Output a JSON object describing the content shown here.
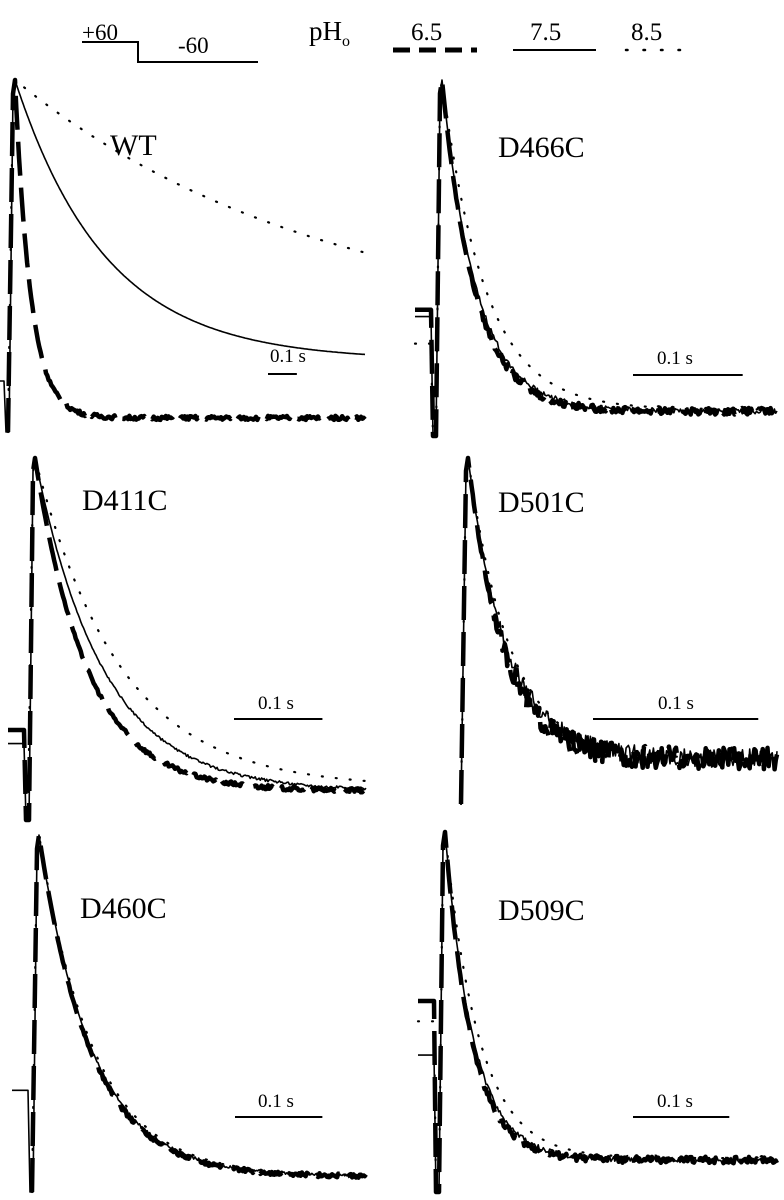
{
  "protocol": {
    "step_high_label": "+60",
    "step_low_label": "-60"
  },
  "legend": {
    "title_main": "pH",
    "title_sub": "o",
    "entries": [
      {
        "label": "6.5",
        "style": "dashed-thick"
      },
      {
        "label": "7.5",
        "style": "solid"
      },
      {
        "label": "8.5",
        "style": "dotted"
      }
    ]
  },
  "chart_data": [
    {
      "type": "line",
      "title": "WT",
      "scale_bar": "0.1 s",
      "scale_bar_seconds": 0.1,
      "x_range_seconds": [
        0,
        1.23
      ],
      "y_range_normalized": [
        0,
        1
      ],
      "pre_pulse_level": {
        "solid": 0.12
      },
      "series": [
        {
          "name": "6.5",
          "style": "dashed-thick",
          "tau_seconds": 0.055,
          "baseline": 0.012,
          "noise": 0.006
        },
        {
          "name": "7.5",
          "style": "solid",
          "tau_seconds": 0.32,
          "baseline": 0.18,
          "noise": 0
        },
        {
          "name": "8.5",
          "style": "dotted",
          "tau_seconds": 1.1,
          "baseline": 0.25,
          "noise": 0
        }
      ]
    },
    {
      "type": "line",
      "title": "D466C",
      "scale_bar": "0.1 s",
      "scale_bar_seconds": 0.1,
      "x_range_seconds": [
        0,
        0.31
      ],
      "y_range_normalized": [
        0,
        1
      ],
      "pre_pulse_level": {
        "dashed-thick": 0.32,
        "solid": 0.3,
        "dotted": 0.22
      },
      "series": [
        {
          "name": "6.5",
          "style": "dashed-thick",
          "tau_seconds": 0.03,
          "baseline": 0.02,
          "noise": 0.01
        },
        {
          "name": "7.5",
          "style": "solid",
          "tau_seconds": 0.032,
          "baseline": 0.02,
          "noise": 0.008
        },
        {
          "name": "8.5",
          "style": "dotted",
          "tau_seconds": 0.04,
          "baseline": 0.025,
          "noise": 0
        }
      ]
    },
    {
      "type": "line",
      "title": "D411C",
      "scale_bar": "0.1 s",
      "scale_bar_seconds": 0.1,
      "x_range_seconds": [
        0,
        0.38
      ],
      "y_range_normalized": [
        0,
        1
      ],
      "pre_pulse_level": {
        "dashed-thick": 0.2,
        "solid": 0.16
      },
      "series": [
        {
          "name": "6.5",
          "style": "dashed-thick",
          "tau_seconds": 0.06,
          "baseline": 0.02,
          "noise": 0.006
        },
        {
          "name": "7.5",
          "style": "solid",
          "tau_seconds": 0.078,
          "baseline": 0.02,
          "noise": 0.004
        },
        {
          "name": "8.5",
          "style": "dotted",
          "tau_seconds": 0.098,
          "baseline": 0.03,
          "noise": 0
        }
      ]
    },
    {
      "type": "line",
      "title": "D501C",
      "scale_bar": "0.1 s",
      "scale_bar_seconds": 0.1,
      "x_range_seconds": [
        0,
        0.19
      ],
      "y_range_normalized": [
        0,
        1
      ],
      "pre_pulse_level": {},
      "series": [
        {
          "name": "6.5",
          "style": "dashed-thick",
          "tau_seconds": 0.022,
          "baseline": 0.06,
          "noise": 0.035
        },
        {
          "name": "7.5",
          "style": "solid",
          "tau_seconds": 0.024,
          "baseline": 0.06,
          "noise": 0.03
        },
        {
          "name": "8.5",
          "style": "dotted",
          "tau_seconds": 0.026,
          "baseline": 0.06,
          "noise": 0
        }
      ]
    },
    {
      "type": "line",
      "title": "D460C",
      "scale_bar": "0.1 s",
      "scale_bar_seconds": 0.1,
      "x_range_seconds": [
        0,
        0.38
      ],
      "y_range_normalized": [
        0,
        1
      ],
      "pre_pulse_level": {
        "solid": 0.26
      },
      "series": [
        {
          "name": "6.5",
          "style": "dashed-thick",
          "tau_seconds": 0.06,
          "baseline": 0.01,
          "noise": 0.006
        },
        {
          "name": "7.5",
          "style": "solid",
          "tau_seconds": 0.062,
          "baseline": 0.01,
          "noise": 0.004
        },
        {
          "name": "8.5",
          "style": "dotted",
          "tau_seconds": 0.064,
          "baseline": 0.012,
          "noise": 0
        }
      ]
    },
    {
      "type": "line",
      "title": "D509C",
      "scale_bar": "0.1 s",
      "scale_bar_seconds": 0.1,
      "x_range_seconds": [
        0,
        0.35
      ],
      "y_range_normalized": [
        0,
        1
      ],
      "pre_pulse_level": {
        "dashed-thick": 0.5,
        "solid": 0.34,
        "dotted": 0.44
      },
      "series": [
        {
          "name": "6.5",
          "style": "dashed-thick",
          "tau_seconds": 0.028,
          "baseline": 0.03,
          "noise": 0.01
        },
        {
          "name": "7.5",
          "style": "solid",
          "tau_seconds": 0.03,
          "baseline": 0.03,
          "noise": 0.008
        },
        {
          "name": "8.5",
          "style": "dotted",
          "tau_seconds": 0.036,
          "baseline": 0.035,
          "noise": 0
        }
      ]
    }
  ]
}
